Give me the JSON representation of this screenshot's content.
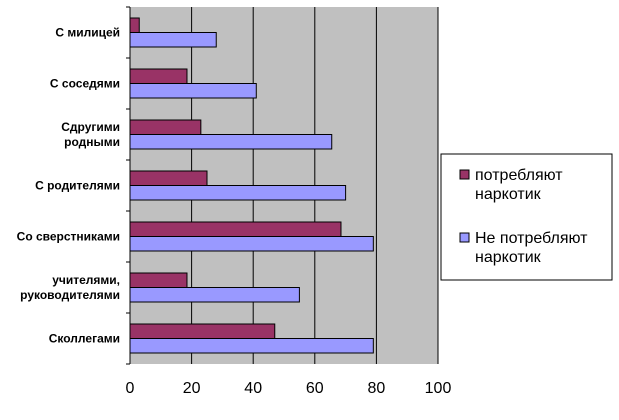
{
  "chart_data": {
    "type": "bar",
    "orientation": "horizontal",
    "categories": [
      [
        "С милицей"
      ],
      [
        "С соседями"
      ],
      [
        "Сдругими",
        "родными"
      ],
      [
        "С родителями"
      ],
      [
        "Со сверстниками"
      ],
      [
        "учителями,",
        "руководителями"
      ],
      [
        "Сколлегами"
      ]
    ],
    "series": [
      {
        "name": [
          "потребляют",
          "наркотик"
        ],
        "color": "#993366",
        "values": [
          3,
          18.5,
          23,
          25,
          68.5,
          18.5,
          47
        ]
      },
      {
        "name": [
          "Не потребляют",
          "наркотик"
        ],
        "color": "#9999ff",
        "values": [
          28,
          41,
          65.5,
          70,
          79,
          55,
          79
        ]
      }
    ],
    "xlim": [
      0,
      100
    ],
    "xticks": [
      "0",
      "20",
      "40",
      "60",
      "80",
      "100"
    ],
    "grid": true,
    "plot_background": "#c0c0c0",
    "legend_position": "right"
  }
}
